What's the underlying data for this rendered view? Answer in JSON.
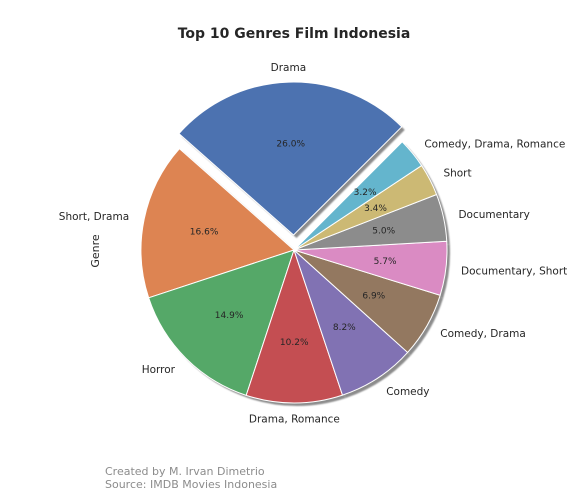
{
  "chart_data": {
    "type": "pie",
    "title": "Top 10 Genres Film Indonesia",
    "ylabel": "Genre",
    "start_angle_deg": 45,
    "direction": "counterclockwise",
    "shadow": true,
    "slices": [
      {
        "label": "Drama",
        "value": 26.0,
        "pct_label": "26.0%",
        "color": "#4c72b0",
        "explode": true
      },
      {
        "label": "Short, Drama",
        "value": 16.6,
        "pct_label": "16.6%",
        "color": "#dd8452",
        "explode": false
      },
      {
        "label": "Horror",
        "value": 14.9,
        "pct_label": "14.9%",
        "color": "#55a868",
        "explode": false
      },
      {
        "label": "Drama, Romance",
        "value": 10.2,
        "pct_label": "10.2%",
        "color": "#c44e52",
        "explode": false
      },
      {
        "label": "Comedy",
        "value": 8.2,
        "pct_label": "8.2%",
        "color": "#8172b3",
        "explode": false
      },
      {
        "label": "Comedy, Drama",
        "value": 6.9,
        "pct_label": "6.9%",
        "color": "#937860",
        "explode": false
      },
      {
        "label": "Documentary, Short",
        "value": 5.7,
        "pct_label": "5.7%",
        "color": "#da8bc3",
        "explode": false
      },
      {
        "label": "Documentary",
        "value": 5.0,
        "pct_label": "5.0%",
        "color": "#8c8c8c",
        "explode": false
      },
      {
        "label": "Short",
        "value": 3.4,
        "pct_label": "3.4%",
        "color": "#ccb974",
        "explode": false
      },
      {
        "label": "Comedy, Drama, Romance",
        "value": 3.2,
        "pct_label": "3.2%",
        "color": "#64b5cd",
        "explode": false
      }
    ]
  },
  "footer": {
    "line1": "Created by M. Irvan Dimetrio",
    "line2": "Source: IMDB Movies Indonesia"
  }
}
